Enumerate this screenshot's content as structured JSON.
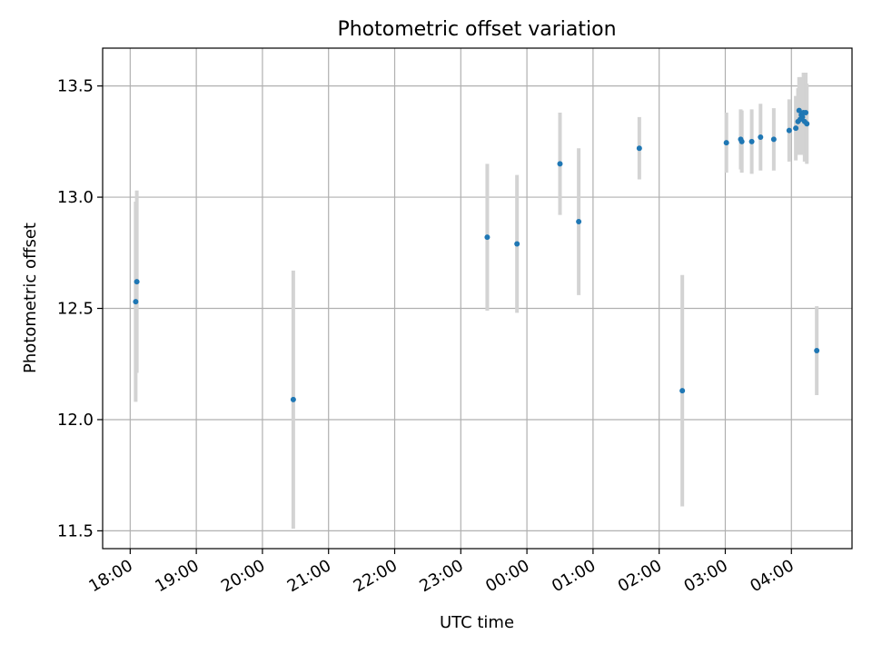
{
  "chart_data": {
    "type": "scatter",
    "title": "Photometric offset variation",
    "xlabel": "UTC time",
    "ylabel": "Photometric offset",
    "x_tick_labels": [
      "18:00",
      "19:00",
      "20:00",
      "21:00",
      "22:00",
      "23:00",
      "00:00",
      "01:00",
      "02:00",
      "03:00",
      "04:00"
    ],
    "y_tick_labels": [
      "11.5",
      "12.0",
      "12.5",
      "13.0",
      "13.5"
    ],
    "y_ticks": [
      11.5,
      12.0,
      12.5,
      13.0,
      13.5
    ],
    "xlim": [
      "17:35",
      "28:55"
    ],
    "ylim": [
      11.42,
      13.67
    ],
    "grid": true,
    "colors": {
      "point": "#1f77b4",
      "errorbar": "#d3d3d3",
      "grid": "#b0b0b0"
    },
    "points": [
      {
        "time": "18:05",
        "y": 12.53,
        "err": 0.45
      },
      {
        "time": "18:06",
        "y": 12.62,
        "err": 0.41
      },
      {
        "time": "20:28",
        "y": 12.09,
        "err": 0.58
      },
      {
        "time": "23:24",
        "y": 12.82,
        "err": 0.33
      },
      {
        "time": "23:51",
        "y": 12.79,
        "err": 0.31
      },
      {
        "time": "24:30",
        "y": 13.15,
        "err": 0.23
      },
      {
        "time": "24:47",
        "y": 12.89,
        "err": 0.33
      },
      {
        "time": "25:42",
        "y": 13.22,
        "err": 0.14
      },
      {
        "time": "26:21",
        "y": 12.13,
        "err": 0.52
      },
      {
        "time": "27:01",
        "y": 13.245,
        "err": 0.135
      },
      {
        "time": "27:14",
        "y": 13.26,
        "err": 0.135
      },
      {
        "time": "27:15",
        "y": 13.25,
        "err": 0.14
      },
      {
        "time": "27:24",
        "y": 13.25,
        "err": 0.145
      },
      {
        "time": "27:32",
        "y": 13.27,
        "err": 0.15
      },
      {
        "time": "27:44",
        "y": 13.26,
        "err": 0.14
      },
      {
        "time": "27:58",
        "y": 13.3,
        "err": 0.14
      },
      {
        "time": "28:04",
        "y": 13.31,
        "err": 0.145
      },
      {
        "time": "28:06",
        "y": 13.34,
        "err": 0.15
      },
      {
        "time": "28:07",
        "y": 13.39,
        "err": 0.15
      },
      {
        "time": "28:08",
        "y": 13.35,
        "err": 0.16
      },
      {
        "time": "28:09",
        "y": 13.37,
        "err": 0.17
      },
      {
        "time": "28:10",
        "y": 13.36,
        "err": 0.17
      },
      {
        "time": "28:11",
        "y": 13.38,
        "err": 0.18
      },
      {
        "time": "28:12",
        "y": 13.34,
        "err": 0.18
      },
      {
        "time": "28:13",
        "y": 13.38,
        "err": 0.18
      },
      {
        "time": "28:14",
        "y": 13.33,
        "err": 0.18
      },
      {
        "time": "28:23",
        "y": 12.31,
        "err": 0.2
      }
    ]
  }
}
